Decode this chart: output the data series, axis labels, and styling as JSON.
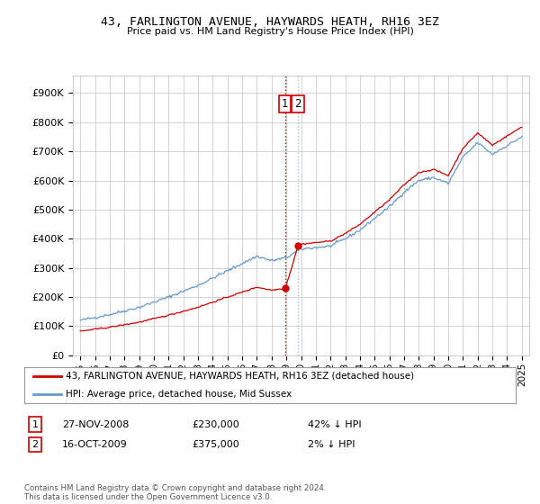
{
  "title": "43, FARLINGTON AVENUE, HAYWARDS HEATH, RH16 3EZ",
  "subtitle": "Price paid vs. HM Land Registry's House Price Index (HPI)",
  "ylabel_ticks": [
    "£0",
    "£100K",
    "£200K",
    "£300K",
    "£400K",
    "£500K",
    "£600K",
    "£700K",
    "£800K",
    "£900K"
  ],
  "ytick_values": [
    0,
    100000,
    200000,
    300000,
    400000,
    500000,
    600000,
    700000,
    800000,
    900000
  ],
  "ylim": [
    0,
    960000
  ],
  "xlim_start": 1994.5,
  "xlim_end": 2025.5,
  "xtick_years": [
    1995,
    1996,
    1997,
    1998,
    1999,
    2000,
    2001,
    2002,
    2003,
    2004,
    2005,
    2006,
    2007,
    2008,
    2009,
    2010,
    2011,
    2012,
    2013,
    2014,
    2015,
    2016,
    2017,
    2018,
    2019,
    2020,
    2021,
    2022,
    2023,
    2024,
    2025
  ],
  "hpi_color": "#6699cc",
  "price_color": "#cc0000",
  "transaction1_x": 2008.91,
  "transaction1_y": 230000,
  "transaction2_x": 2009.79,
  "transaction2_y": 375000,
  "legend_address": "43, FARLINGTON AVENUE, HAYWARDS HEATH, RH16 3EZ (detached house)",
  "legend_hpi": "HPI: Average price, detached house, Mid Sussex",
  "table_row1_num": "1",
  "table_row1_date": "27-NOV-2008",
  "table_row1_price": "£230,000",
  "table_row1_hpi": "42% ↓ HPI",
  "table_row2_num": "2",
  "table_row2_date": "16-OCT-2009",
  "table_row2_price": "£375,000",
  "table_row2_hpi": "2% ↓ HPI",
  "footer": "Contains HM Land Registry data © Crown copyright and database right 2024.\nThis data is licensed under the Open Government Licence v3.0.",
  "bg_color": "#ffffff",
  "grid_color": "#cccccc",
  "hpi_anchors_x": [
    1995,
    1997,
    1999,
    2001,
    2003,
    2005,
    2007,
    2008,
    2009,
    2010,
    2011,
    2012,
    2013,
    2014,
    2015,
    2016,
    2017,
    2018,
    2019,
    2020,
    2021,
    2022,
    2023,
    2024,
    2025
  ],
  "hpi_anchors_y": [
    120000,
    140000,
    165000,
    200000,
    240000,
    290000,
    340000,
    325000,
    335000,
    365000,
    370000,
    375000,
    400000,
    430000,
    470000,
    510000,
    560000,
    600000,
    610000,
    590000,
    680000,
    730000,
    690000,
    720000,
    750000
  ],
  "price_scale1": 0.493,
  "price_scale2": 0.806
}
